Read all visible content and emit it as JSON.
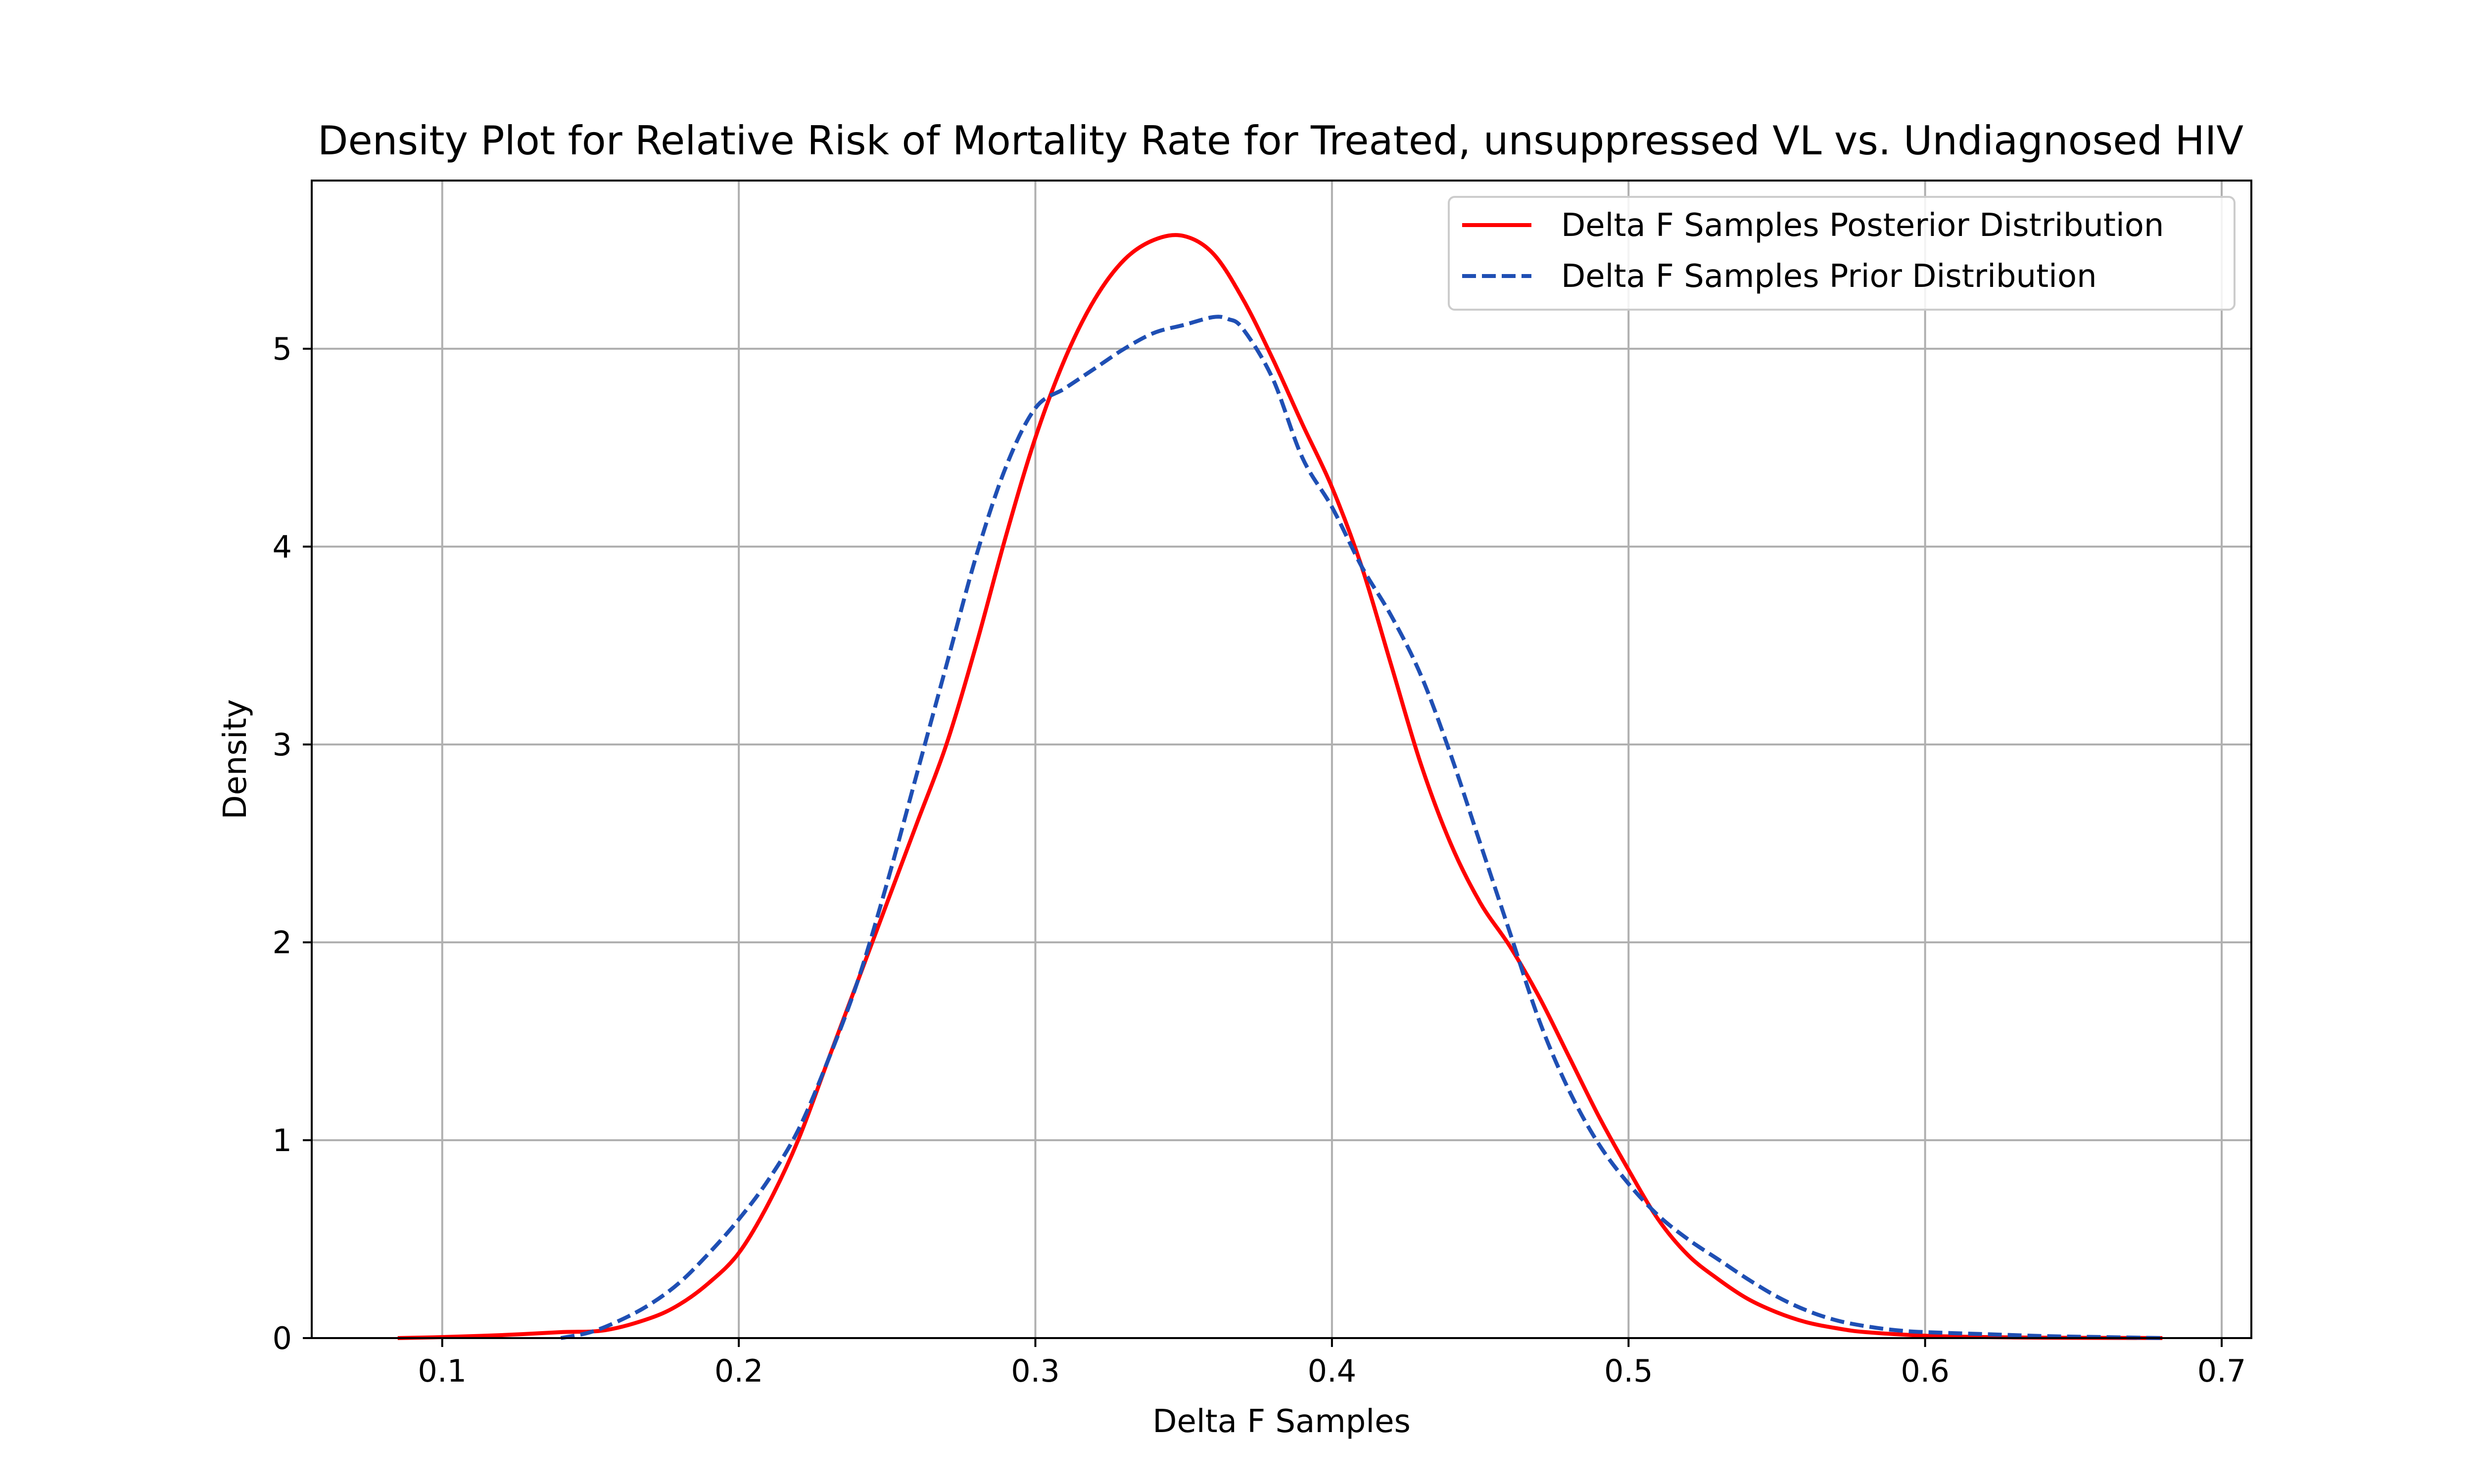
{
  "chart_data": {
    "type": "line",
    "title": "Density Plot for Relative Risk of Mortality Rate for Treated, unsuppressed VL vs. Undiagnosed HIV",
    "xlabel": "Delta F Samples",
    "ylabel": "Density",
    "xlim": [
      0.056,
      0.71
    ],
    "ylim": [
      0,
      5.85
    ],
    "xticks": [
      0.1,
      0.2,
      0.3,
      0.4,
      0.5,
      0.6,
      0.7
    ],
    "xtick_labels": [
      "0.1",
      "0.2",
      "0.3",
      "0.4",
      "0.5",
      "0.6",
      "0.7"
    ],
    "yticks": [
      0,
      1,
      2,
      3,
      4,
      5
    ],
    "ytick_labels": [
      "0",
      "1",
      "2",
      "3",
      "4",
      "5"
    ],
    "grid": true,
    "legend_position": "top-right",
    "series": [
      {
        "name": "Delta F Samples Posterior Distribution",
        "color": "#ff0000",
        "style": "solid",
        "x": [
          0.085,
          0.1,
          0.12,
          0.14,
          0.155,
          0.17,
          0.18,
          0.19,
          0.2,
          0.21,
          0.22,
          0.23,
          0.24,
          0.25,
          0.26,
          0.27,
          0.28,
          0.29,
          0.3,
          0.31,
          0.32,
          0.33,
          0.34,
          0.35,
          0.36,
          0.37,
          0.38,
          0.39,
          0.4,
          0.41,
          0.42,
          0.43,
          0.44,
          0.45,
          0.46,
          0.47,
          0.48,
          0.49,
          0.5,
          0.51,
          0.52,
          0.53,
          0.54,
          0.55,
          0.56,
          0.57,
          0.58,
          0.6,
          0.62,
          0.64,
          0.66,
          0.68
        ],
        "y": [
          0.0,
          0.005,
          0.015,
          0.03,
          0.04,
          0.1,
          0.17,
          0.28,
          0.43,
          0.68,
          1.0,
          1.4,
          1.8,
          2.2,
          2.6,
          3.0,
          3.5,
          4.05,
          4.55,
          4.95,
          5.25,
          5.45,
          5.55,
          5.57,
          5.48,
          5.25,
          4.95,
          4.62,
          4.3,
          3.9,
          3.4,
          2.9,
          2.5,
          2.2,
          1.98,
          1.72,
          1.42,
          1.12,
          0.85,
          0.6,
          0.42,
          0.3,
          0.2,
          0.13,
          0.08,
          0.05,
          0.03,
          0.012,
          0.005,
          0.002,
          0.001,
          0.0
        ]
      },
      {
        "name": "Delta F Samples Prior Distribution",
        "color": "#1f4fb4",
        "style": "dashed",
        "x": [
          0.14,
          0.15,
          0.16,
          0.17,
          0.18,
          0.19,
          0.2,
          0.21,
          0.22,
          0.23,
          0.24,
          0.25,
          0.26,
          0.27,
          0.28,
          0.29,
          0.3,
          0.31,
          0.32,
          0.33,
          0.34,
          0.35,
          0.36,
          0.365,
          0.37,
          0.38,
          0.39,
          0.4,
          0.41,
          0.42,
          0.43,
          0.44,
          0.45,
          0.46,
          0.47,
          0.48,
          0.49,
          0.5,
          0.51,
          0.52,
          0.53,
          0.54,
          0.55,
          0.56,
          0.57,
          0.58,
          0.59,
          0.6,
          0.62,
          0.64,
          0.66,
          0.68
        ],
        "y": [
          0.0,
          0.03,
          0.09,
          0.17,
          0.28,
          0.43,
          0.6,
          0.8,
          1.05,
          1.4,
          1.8,
          2.3,
          2.85,
          3.4,
          3.95,
          4.4,
          4.7,
          4.8,
          4.9,
          5.0,
          5.08,
          5.12,
          5.16,
          5.15,
          5.1,
          4.85,
          4.45,
          4.2,
          3.9,
          3.65,
          3.35,
          2.95,
          2.5,
          2.05,
          1.6,
          1.25,
          0.98,
          0.78,
          0.62,
          0.5,
          0.4,
          0.3,
          0.21,
          0.14,
          0.09,
          0.06,
          0.04,
          0.03,
          0.02,
          0.01,
          0.005,
          0.0
        ]
      }
    ]
  }
}
